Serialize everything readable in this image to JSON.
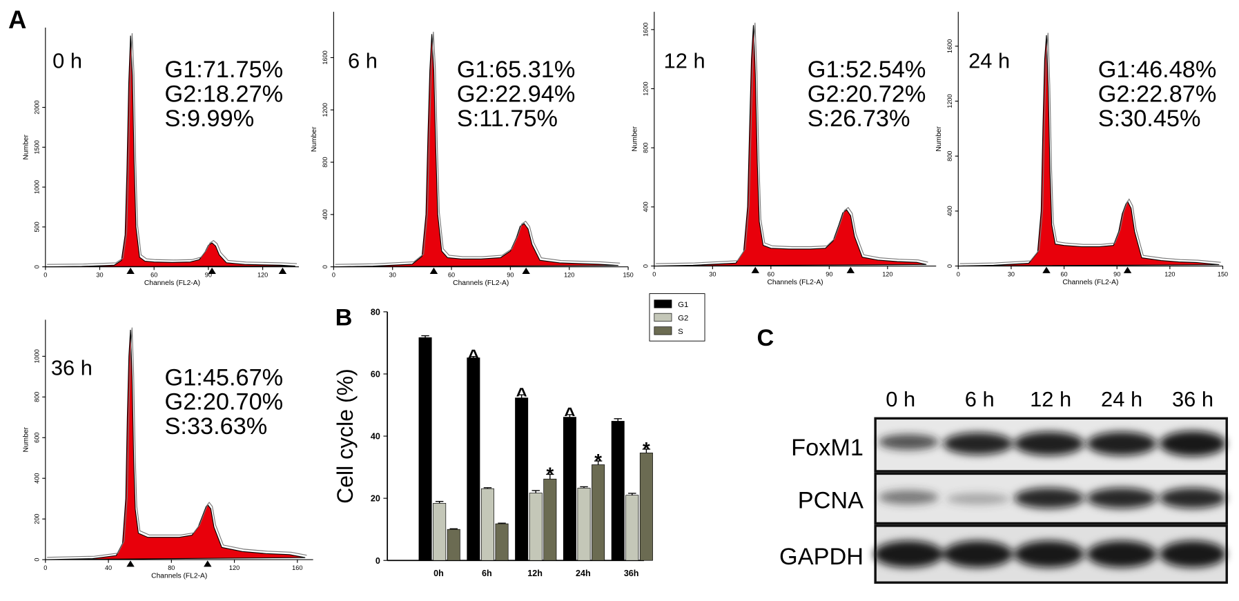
{
  "panel_labels": {
    "a": "A",
    "b": "B",
    "c": "C"
  },
  "chart_data": [
    {
      "type": "area",
      "title": "0 h",
      "annotations": [
        "G1:71.75%",
        "G2:18.27%",
        "S:9.99%"
      ],
      "color": "#e8000b",
      "xlabel": "Channels (FL2-A)",
      "ylabel": "Number",
      "x": [
        0,
        20,
        38,
        42,
        44,
        45,
        46,
        47,
        48,
        49,
        50,
        52,
        55,
        60,
        70,
        80,
        85,
        88,
        90,
        92,
        94,
        96,
        100,
        110,
        120,
        130,
        138
      ],
      "values": [
        0,
        5,
        20,
        80,
        400,
        1200,
        2300,
        2900,
        2400,
        1300,
        500,
        120,
        70,
        60,
        55,
        60,
        90,
        180,
        270,
        300,
        260,
        150,
        50,
        30,
        25,
        20,
        10
      ],
      "markers": [
        47,
        92,
        131
      ],
      "xlim": [
        0,
        140
      ],
      "ylim": [
        0,
        3000
      ],
      "xticks": [
        0,
        30,
        60,
        90,
        120
      ],
      "yticks": [
        0,
        500,
        1000,
        1500,
        2000
      ]
    },
    {
      "type": "area",
      "title": "6 h",
      "annotations": [
        "G1:65.31%",
        "G2:22.94%",
        "S:11.75%"
      ],
      "color": "#e8000b",
      "xlabel": "Channels (FL2-A)",
      "ylabel": "Number",
      "x": [
        0,
        20,
        40,
        45,
        47,
        48,
        49,
        50,
        51,
        52,
        53,
        55,
        58,
        65,
        75,
        85,
        90,
        93,
        95,
        97,
        99,
        101,
        105,
        115,
        125,
        135,
        145
      ],
      "values": [
        0,
        5,
        20,
        80,
        400,
        1000,
        1500,
        1780,
        1500,
        900,
        400,
        120,
        70,
        60,
        60,
        70,
        120,
        220,
        310,
        330,
        290,
        170,
        50,
        30,
        25,
        20,
        10
      ],
      "markers": [
        51,
        98
      ],
      "xlim": [
        0,
        150
      ],
      "ylim": [
        0,
        1950
      ],
      "xticks": [
        0,
        30,
        60,
        90,
        120,
        150
      ],
      "yticks": [
        0,
        400,
        800,
        1200,
        1600
      ]
    },
    {
      "type": "area",
      "title": "12 h",
      "annotations": [
        "G1:52.54%",
        "G2:20.72%",
        "S:26.73%"
      ],
      "color": "#e8000b",
      "xlabel": "Channels (FL2-A)",
      "ylabel": "Number",
      "x": [
        0,
        20,
        42,
        46,
        48,
        49,
        50,
        51,
        52,
        53,
        54,
        56,
        60,
        70,
        80,
        88,
        92,
        95,
        97,
        99,
        101,
        103,
        107,
        115,
        125,
        135,
        140
      ],
      "values": [
        0,
        5,
        20,
        100,
        400,
        900,
        1400,
        1630,
        1300,
        700,
        300,
        140,
        120,
        115,
        115,
        120,
        170,
        280,
        360,
        380,
        340,
        200,
        60,
        40,
        30,
        25,
        10
      ],
      "markers": [
        52,
        101
      ],
      "xlim": [
        0,
        145
      ],
      "ylim": [
        0,
        1720
      ],
      "xticks": [
        0,
        30,
        60,
        90,
        120
      ],
      "yticks": [
        0,
        400,
        800,
        1200,
        1600
      ]
    },
    {
      "type": "area",
      "title": "24 h",
      "annotations": [
        "G1:46.48%",
        "G2:22.87%",
        "S:30.45%"
      ],
      "color": "#e8000b",
      "xlabel": "Channels (FL2-A)",
      "ylabel": "Number",
      "x": [
        0,
        20,
        40,
        45,
        47,
        48,
        49,
        50,
        51,
        52,
        53,
        55,
        60,
        70,
        80,
        88,
        91,
        93,
        95,
        96,
        98,
        100,
        104,
        115,
        125,
        135,
        148
      ],
      "values": [
        0,
        5,
        20,
        100,
        400,
        1000,
        1500,
        1680,
        1300,
        700,
        300,
        160,
        150,
        140,
        140,
        150,
        250,
        380,
        450,
        470,
        420,
        250,
        60,
        40,
        30,
        25,
        10
      ],
      "markers": [
        50,
        96
      ],
      "xlim": [
        0,
        150
      ],
      "ylim": [
        0,
        1850
      ],
      "xticks": [
        0,
        30,
        60,
        90,
        120,
        150
      ],
      "yticks": [
        0,
        400,
        800,
        1200,
        1600
      ]
    },
    {
      "type": "area",
      "title": "36 h",
      "annotations": [
        "G1:45.67%",
        "G2:20.70%",
        "S:33.63%"
      ],
      "color": "#e8000b",
      "xlabel": "Channels (FL2-A)",
      "ylabel": "Number",
      "x": [
        0,
        30,
        45,
        49,
        51,
        52,
        53,
        54,
        55,
        56,
        57,
        59,
        65,
        75,
        85,
        93,
        97,
        100,
        102,
        103,
        105,
        107,
        112,
        125,
        140,
        155,
        165
      ],
      "values": [
        0,
        5,
        20,
        80,
        300,
        700,
        1000,
        1130,
        900,
        500,
        250,
        130,
        110,
        110,
        110,
        120,
        160,
        220,
        260,
        270,
        250,
        160,
        60,
        40,
        30,
        25,
        10
      ],
      "markers": [
        54,
        103
      ],
      "xlim": [
        0,
        170
      ],
      "ylim": [
        0,
        1180
      ],
      "xticks": [
        0,
        40,
        80,
        120,
        160
      ],
      "yticks": [
        0,
        200,
        400,
        600,
        800,
        1000
      ]
    },
    {
      "type": "bar",
      "ylabel": "Cell cycle (%)",
      "categories": [
        "0h",
        "6h",
        "12h",
        "24h",
        "36h"
      ],
      "series": [
        {
          "name": "G1",
          "color": "#000000",
          "values": [
            71.7,
            65.2,
            52.3,
            46.1,
            44.8
          ],
          "errors": [
            0.6,
            0.4,
            1.0,
            0.8,
            0.8
          ],
          "annotations": [
            null,
            "^",
            "^",
            "^",
            null
          ]
        },
        {
          "name": "G2",
          "color": "#c4c7b8",
          "values": [
            18.4,
            23.1,
            21.7,
            23.3,
            21.0
          ],
          "errors": [
            0.6,
            0.3,
            0.8,
            0.4,
            0.6
          ],
          "annotations": [
            null,
            null,
            null,
            null,
            null
          ]
        },
        {
          "name": "S",
          "color": "#6b6b52",
          "values": [
            10.0,
            11.8,
            26.2,
            30.8,
            34.6
          ],
          "errors": [
            0.2,
            0.2,
            1.5,
            1.2,
            1.2
          ],
          "annotations": [
            null,
            null,
            "*",
            "*",
            "*"
          ]
        }
      ],
      "ylim": [
        0,
        80
      ],
      "yticks": [
        0,
        20,
        40,
        60,
        80
      ]
    }
  ],
  "blot": {
    "lanes": [
      "0 h",
      "6 h",
      "12 h",
      "24 h",
      "36 h"
    ],
    "rows": [
      "FoxM1",
      "PCNA",
      "GAPDH"
    ]
  }
}
